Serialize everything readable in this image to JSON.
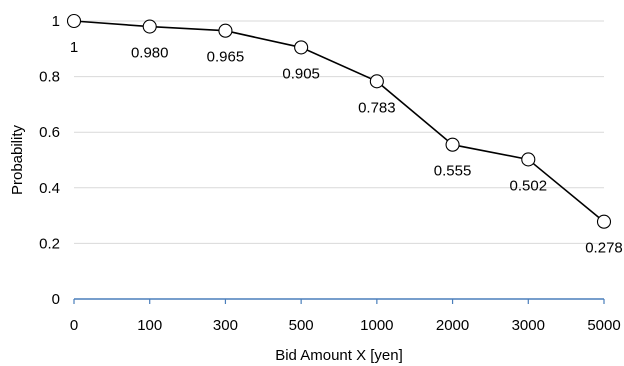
{
  "chart_data": {
    "type": "line",
    "title": "",
    "xlabel": "Bid Amount X [yen]",
    "ylabel": "Probability",
    "categories": [
      "0",
      "100",
      "300",
      "500",
      "1000",
      "2000",
      "3000",
      "5000"
    ],
    "series": [
      {
        "values": [
          1,
          0.98,
          0.965,
          0.905,
          0.783,
          0.555,
          0.502,
          0.278
        ],
        "labels": [
          "1",
          "0.980",
          "0.965",
          "0.905",
          "0.783",
          "0.555",
          "0.502",
          "0.278"
        ]
      }
    ],
    "ylim": [
      0,
      1
    ],
    "yticks": [
      "0",
      "0.2",
      "0.4",
      "0.6",
      "0.8",
      "1"
    ],
    "grid": true,
    "legend": "none",
    "colors": {
      "line": "#000000",
      "grid": "#d9d9d9",
      "x_axis": "#4a7ebb",
      "marker_fill": "#ffffff"
    }
  }
}
